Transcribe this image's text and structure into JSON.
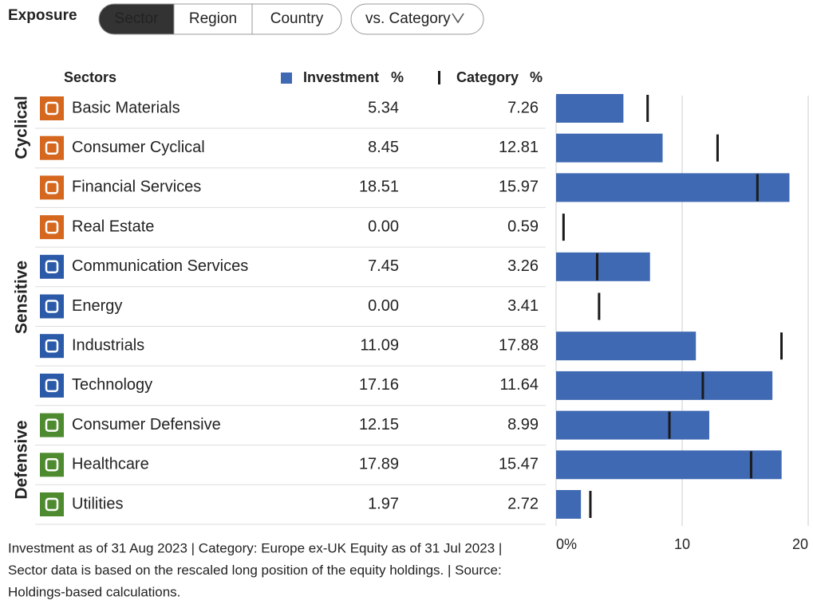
{
  "title": "Exposure",
  "tabs": [
    "Sector",
    "Region",
    "Country"
  ],
  "compare_button": "vs. Category",
  "footnote": [
    "Investment as of 31 Aug 2023 | Category: Europe ex-UK Equity as of 31 Jul 2023 |",
    "Sector data is based on the rescaled long position of the equity holdings. | Source:",
    "Holdings-based calculations."
  ],
  "groups": [
    {
      "name": "Cyclical",
      "color": "#d5671f"
    },
    {
      "name": "Sensitive",
      "color": "#2b5aa8"
    },
    {
      "name": "Defensive",
      "color": "#4e8a2f"
    }
  ],
  "chart_data": {
    "type": "bar",
    "orientation": "horizontal",
    "category_header": "Sectors",
    "unit": "%",
    "categories": [
      "Basic Materials",
      "Consumer Cyclical",
      "Financial Services",
      "Real Estate",
      "Communication Services",
      "Energy",
      "Industrials",
      "Technology",
      "Consumer Defensive",
      "Healthcare",
      "Utilities"
    ],
    "series": [
      {
        "name": "Investment",
        "color": "#3f69b3",
        "values": [
          5.34,
          8.45,
          18.51,
          0,
          7.45,
          0,
          11.09,
          17.16,
          12.15,
          17.89,
          1.97
        ],
        "value_labels": [
          "5.34",
          "8.45",
          "18.51",
          "0.00",
          "7.45",
          "0.00",
          "11.09",
          "17.16",
          "12.15",
          "17.89",
          "1.97"
        ]
      },
      {
        "name": "Category",
        "color": "#1a1a1a",
        "values": [
          7.26,
          12.81,
          15.97,
          0.59,
          3.26,
          3.41,
          17.88,
          11.64,
          8.99,
          15.47,
          2.72
        ],
        "value_labels": [
          "7.26",
          "12.81",
          "15.97",
          "0.59",
          "3.26",
          "3.41",
          "17.88",
          "11.64",
          "8.99",
          "15.47",
          "2.72"
        ]
      }
    ],
    "xlim": [
      0,
      20
    ],
    "xticks": [
      {
        "value": 0,
        "label": "0%"
      },
      10,
      20
    ],
    "grid": true
  }
}
